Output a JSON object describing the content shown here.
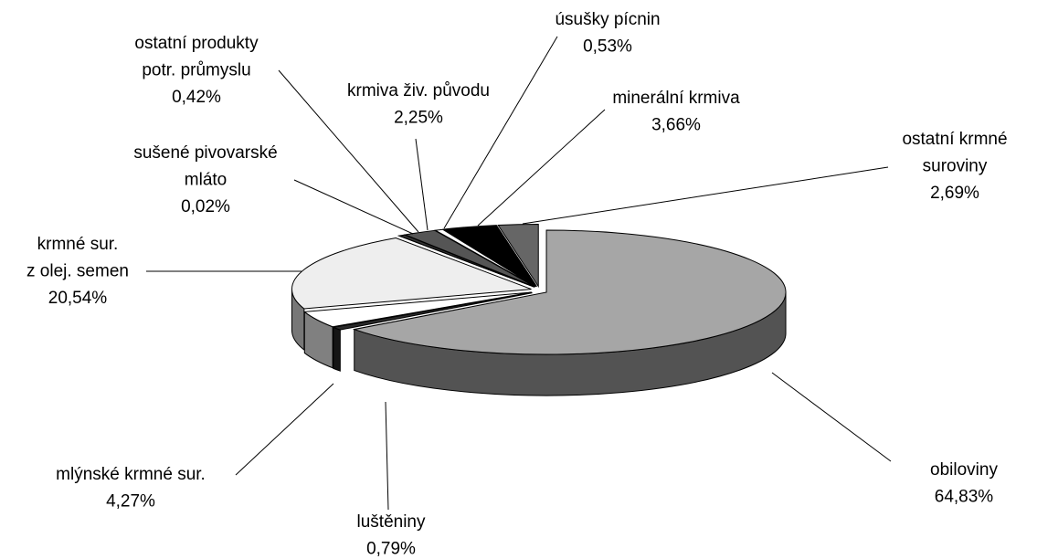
{
  "chart_data": {
    "type": "pie3d",
    "categories": [
      [
        "obiloviny"
      ],
      [
        "luštěniny"
      ],
      [
        "mlýnské krmné sur."
      ],
      [
        "krmné sur.",
        "z olej. semen"
      ],
      [
        "sušené pivovarské",
        "mláto"
      ],
      [
        "ostatní produkty",
        "potr. průmyslu"
      ],
      [
        "krmiva živ. původu"
      ],
      [
        "úsušky pícnin"
      ],
      [
        "minerální krmiva"
      ],
      [
        "ostatní krmné",
        "suroviny"
      ]
    ],
    "values": [
      64.83,
      0.79,
      4.27,
      20.54,
      0.02,
      0.42,
      2.25,
      0.53,
      3.66,
      2.69
    ],
    "value_labels": [
      "64,83%",
      "0,79%",
      "4,27%",
      "20,54%",
      "0,02%",
      "0,42%",
      "2,25%",
      "0,53%",
      "3,66%",
      "2,69%"
    ],
    "colors": [
      "#a6a6a6",
      "#2a2a2a",
      "#ffffff",
      "#eeeeee",
      "#000000",
      "#333333",
      "#555555",
      "#ffffff",
      "#000000",
      "#666666"
    ]
  }
}
